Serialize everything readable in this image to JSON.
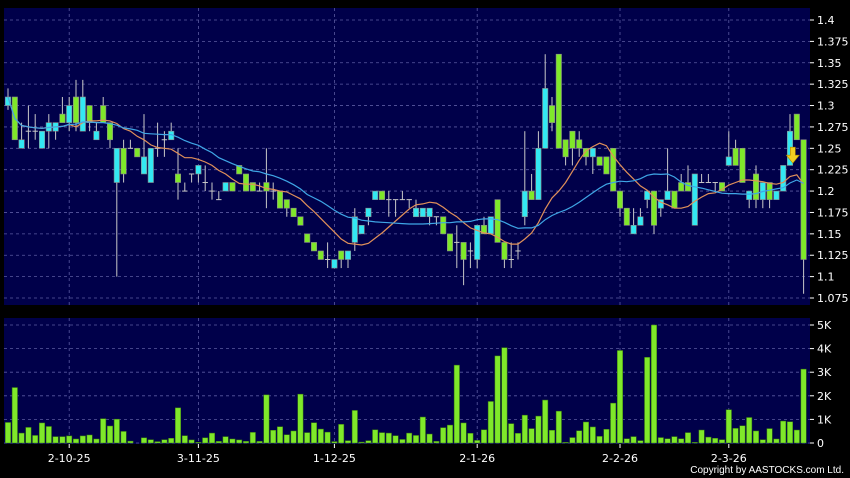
{
  "chart_data": {
    "type": "candlestick",
    "title": "",
    "price_axis": {
      "ylim": [
        1.075,
        1.4
      ],
      "ticks": [
        "1.075",
        "1.1",
        "1.125",
        "1.15",
        "1.175",
        "1.2",
        "1.225",
        "1.25",
        "1.275",
        "1.3",
        "1.325",
        "1.35",
        "1.375",
        "1.4"
      ]
    },
    "volume_axis": {
      "ylim": [
        0,
        5000
      ],
      "ticks": [
        {
          "v": 0,
          "label": "0"
        },
        {
          "v": 1000,
          "label": "1K"
        },
        {
          "v": 2000,
          "label": "2K"
        },
        {
          "v": 3000,
          "label": "3K"
        },
        {
          "v": 4000,
          "label": "4K"
        },
        {
          "v": 5000,
          "label": "5K"
        }
      ]
    },
    "x_ticks": [
      {
        "label": "2-10-25",
        "index": 9
      },
      {
        "label": "3-11-25",
        "index": 28
      },
      {
        "label": "1-12-25",
        "index": 48
      },
      {
        "label": "2-1-26",
        "index": 69
      },
      {
        "label": "2-2-26",
        "index": 90
      },
      {
        "label": "2-3-26",
        "index": 106
      }
    ],
    "grid": true,
    "moving_averages": [
      {
        "period": 10,
        "color": "#e0905a"
      },
      {
        "period": 20,
        "color": "#3fa6e6"
      }
    ],
    "colors": {
      "up": "#33e8f2",
      "down": "#7fe82a",
      "wick": "#c8c8c8",
      "background": "#00004a",
      "grid": "#5a5aa0",
      "volume": "#7fe82a",
      "arrow": "#f2d020"
    },
    "annotation": {
      "type": "down-arrow",
      "index": 116,
      "price": 1.235
    },
    "ohlc": [
      [
        1.3,
        1.32,
        1.295,
        1.31
      ],
      [
        1.31,
        1.31,
        1.26,
        1.26
      ],
      [
        1.25,
        1.28,
        1.25,
        1.26
      ],
      [
        1.27,
        1.3,
        1.25,
        1.27
      ],
      [
        1.27,
        1.29,
        1.26,
        1.27
      ],
      [
        1.25,
        1.27,
        1.25,
        1.27
      ],
      [
        1.27,
        1.29,
        1.25,
        1.28
      ],
      [
        1.27,
        1.28,
        1.26,
        1.28
      ],
      [
        1.29,
        1.31,
        1.28,
        1.28
      ],
      [
        1.28,
        1.31,
        1.27,
        1.3
      ],
      [
        1.31,
        1.33,
        1.27,
        1.28
      ],
      [
        1.27,
        1.33,
        1.27,
        1.31
      ],
      [
        1.3,
        1.3,
        1.27,
        1.28
      ],
      [
        1.26,
        1.28,
        1.26,
        1.27
      ],
      [
        1.3,
        1.31,
        1.28,
        1.28
      ],
      [
        1.28,
        1.28,
        1.25,
        1.26
      ],
      [
        1.21,
        1.25,
        1.1,
        1.25
      ],
      [
        1.25,
        1.26,
        1.21,
        1.22
      ],
      [
        1.25,
        1.26,
        1.25,
        1.25
      ],
      [
        1.25,
        1.25,
        1.24,
        1.24
      ],
      [
        1.22,
        1.29,
        1.22,
        1.24
      ],
      [
        1.21,
        1.25,
        1.21,
        1.25
      ],
      [
        1.25,
        1.28,
        1.24,
        1.25
      ],
      [
        1.26,
        1.27,
        1.24,
        1.26
      ],
      [
        1.26,
        1.28,
        1.26,
        1.27
      ],
      [
        1.22,
        1.25,
        1.19,
        1.21
      ],
      [
        1.2,
        1.21,
        1.2,
        1.2
      ],
      [
        1.22,
        1.22,
        1.21,
        1.22
      ],
      [
        1.22,
        1.23,
        1.21,
        1.23
      ],
      [
        1.21,
        1.23,
        1.2,
        1.21
      ],
      [
        1.2,
        1.21,
        1.19,
        1.2
      ],
      [
        1.19,
        1.2,
        1.19,
        1.19
      ],
      [
        1.2,
        1.21,
        1.2,
        1.21
      ],
      [
        1.21,
        1.21,
        1.2,
        1.2
      ],
      [
        1.23,
        1.23,
        1.22,
        1.22
      ],
      [
        1.22,
        1.22,
        1.2,
        1.2
      ],
      [
        1.21,
        1.21,
        1.2,
        1.2
      ],
      [
        1.2,
        1.21,
        1.2,
        1.2
      ],
      [
        1.21,
        1.25,
        1.18,
        1.2
      ],
      [
        1.2,
        1.21,
        1.19,
        1.2
      ],
      [
        1.2,
        1.2,
        1.18,
        1.18
      ],
      [
        1.19,
        1.19,
        1.17,
        1.18
      ],
      [
        1.18,
        1.18,
        1.17,
        1.17
      ],
      [
        1.17,
        1.17,
        1.16,
        1.16
      ],
      [
        1.15,
        1.15,
        1.14,
        1.14
      ],
      [
        1.14,
        1.14,
        1.13,
        1.13
      ],
      [
        1.13,
        1.13,
        1.12,
        1.12
      ],
      [
        1.12,
        1.14,
        1.11,
        1.12
      ],
      [
        1.11,
        1.12,
        1.11,
        1.12
      ],
      [
        1.13,
        1.13,
        1.11,
        1.12
      ],
      [
        1.12,
        1.13,
        1.11,
        1.13
      ],
      [
        1.14,
        1.18,
        1.13,
        1.17
      ],
      [
        1.15,
        1.16,
        1.15,
        1.16
      ],
      [
        1.17,
        1.18,
        1.16,
        1.18
      ],
      [
        1.19,
        1.2,
        1.19,
        1.2
      ],
      [
        1.2,
        1.2,
        1.19,
        1.19
      ],
      [
        1.19,
        1.2,
        1.17,
        1.19
      ],
      [
        1.19,
        1.19,
        1.17,
        1.19
      ],
      [
        1.19,
        1.2,
        1.19,
        1.19
      ],
      [
        1.19,
        1.19,
        1.18,
        1.19
      ],
      [
        1.17,
        1.19,
        1.17,
        1.18
      ],
      [
        1.17,
        1.18,
        1.17,
        1.18
      ],
      [
        1.17,
        1.18,
        1.16,
        1.18
      ],
      [
        1.17,
        1.17,
        1.16,
        1.17
      ],
      [
        1.17,
        1.17,
        1.15,
        1.15
      ],
      [
        1.15,
        1.15,
        1.13,
        1.13
      ],
      [
        1.14,
        1.16,
        1.11,
        1.14
      ],
      [
        1.14,
        1.14,
        1.09,
        1.12
      ],
      [
        1.13,
        1.14,
        1.11,
        1.13
      ],
      [
        1.12,
        1.16,
        1.11,
        1.16
      ],
      [
        1.16,
        1.17,
        1.15,
        1.15
      ],
      [
        1.15,
        1.17,
        1.15,
        1.17
      ],
      [
        1.19,
        1.19,
        1.14,
        1.14
      ],
      [
        1.14,
        1.14,
        1.11,
        1.12
      ],
      [
        1.12,
        1.14,
        1.11,
        1.12
      ],
      [
        1.13,
        1.14,
        1.12,
        1.13
      ],
      [
        1.17,
        1.27,
        1.16,
        1.2
      ],
      [
        1.2,
        1.22,
        1.19,
        1.19
      ],
      [
        1.19,
        1.27,
        1.19,
        1.25
      ],
      [
        1.25,
        1.36,
        1.25,
        1.32
      ],
      [
        1.3,
        1.31,
        1.27,
        1.28
      ],
      [
        1.36,
        1.36,
        1.25,
        1.25
      ],
      [
        1.26,
        1.26,
        1.23,
        1.24
      ],
      [
        1.27,
        1.27,
        1.23,
        1.25
      ],
      [
        1.26,
        1.27,
        1.24,
        1.25
      ],
      [
        1.25,
        1.25,
        1.23,
        1.24
      ],
      [
        1.24,
        1.25,
        1.22,
        1.25
      ],
      [
        1.24,
        1.24,
        1.23,
        1.23
      ],
      [
        1.24,
        1.24,
        1.22,
        1.22
      ],
      [
        1.25,
        1.25,
        1.2,
        1.2
      ],
      [
        1.2,
        1.2,
        1.17,
        1.18
      ],
      [
        1.18,
        1.18,
        1.16,
        1.16
      ],
      [
        1.15,
        1.18,
        1.15,
        1.16
      ],
      [
        1.16,
        1.18,
        1.16,
        1.17
      ],
      [
        1.19,
        1.2,
        1.18,
        1.2
      ],
      [
        1.2,
        1.2,
        1.15,
        1.16
      ],
      [
        1.18,
        1.19,
        1.17,
        1.19
      ],
      [
        1.19,
        1.25,
        1.19,
        1.2
      ],
      [
        1.2,
        1.2,
        1.18,
        1.18
      ],
      [
        1.21,
        1.22,
        1.2,
        1.2
      ],
      [
        1.21,
        1.23,
        1.2,
        1.2
      ],
      [
        1.16,
        1.22,
        1.16,
        1.22
      ],
      [
        1.21,
        1.22,
        1.21,
        1.21
      ],
      [
        1.21,
        1.22,
        1.21,
        1.21
      ],
      [
        1.21,
        1.21,
        1.2,
        1.21
      ],
      [
        1.21,
        1.21,
        1.2,
        1.2
      ],
      [
        1.23,
        1.27,
        1.23,
        1.24
      ],
      [
        1.25,
        1.26,
        1.23,
        1.23
      ],
      [
        1.25,
        1.25,
        1.21,
        1.21
      ],
      [
        1.19,
        1.2,
        1.18,
        1.2
      ],
      [
        1.22,
        1.23,
        1.18,
        1.19
      ],
      [
        1.19,
        1.21,
        1.18,
        1.21
      ],
      [
        1.21,
        1.21,
        1.18,
        1.19
      ],
      [
        1.19,
        1.2,
        1.19,
        1.2
      ],
      [
        1.2,
        1.23,
        1.2,
        1.23
      ],
      [
        1.23,
        1.29,
        1.23,
        1.27
      ],
      [
        1.29,
        1.29,
        1.26,
        1.26
      ],
      [
        1.26,
        1.26,
        1.08,
        1.12
      ]
    ],
    "volume": [
      870,
      2350,
      420,
      660,
      320,
      850,
      700,
      270,
      270,
      300,
      170,
      300,
      340,
      170,
      1030,
      720,
      1010,
      490,
      80,
      0,
      220,
      140,
      60,
      140,
      200,
      1490,
      310,
      130,
      30,
      220,
      420,
      70,
      270,
      170,
      130,
      70,
      450,
      70,
      2040,
      540,
      690,
      350,
      510,
      2070,
      440,
      860,
      590,
      460,
      60,
      790,
      100,
      1380,
      40,
      100,
      560,
      440,
      420,
      310,
      150,
      420,
      320,
      1100,
      380,
      70,
      650,
      760,
      3300,
      850,
      410,
      110,
      560,
      1760,
      3690,
      4040,
      820,
      410,
      1180,
      610,
      1140,
      1820,
      540,
      1350,
      30,
      230,
      520,
      890,
      680,
      280,
      580,
      1690,
      3920,
      180,
      270,
      100,
      3630,
      5000,
      230,
      180,
      270,
      180,
      440,
      30,
      550,
      250,
      200,
      140,
      1410,
      620,
      730,
      1080,
      510,
      140,
      610,
      170,
      930,
      900,
      550,
      3130
    ]
  },
  "footer": {
    "copyright": "Copyright by AASTOCKS.com Ltd."
  }
}
